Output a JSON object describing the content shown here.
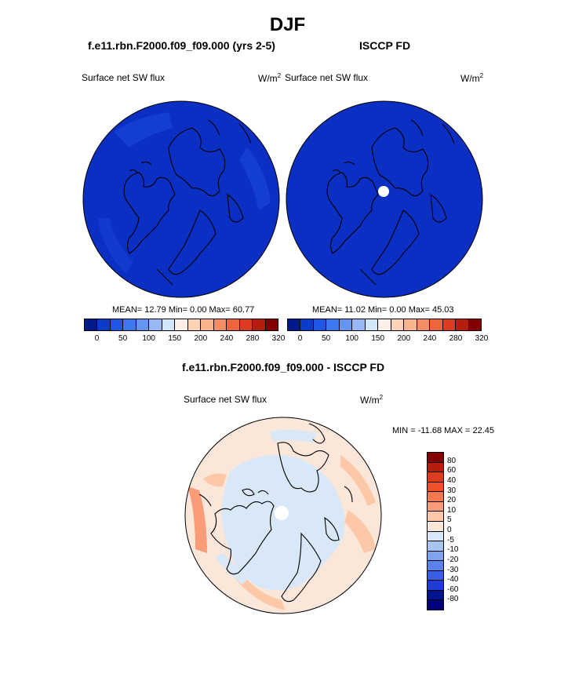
{
  "figure": {
    "title": "DJF",
    "panel_left": {
      "subtitle": "f.e11.rbn.F2000.f09_f09.000 (yrs 2-5)",
      "variable": "Surface net SW flux",
      "units": "W/m",
      "units_exp": "2",
      "stats": "MEAN=  12.79  Min=   0.00  Max=  60.77"
    },
    "panel_right": {
      "subtitle": "ISCCP FD",
      "variable": "Surface net SW flux",
      "units": "W/m",
      "units_exp": "2",
      "stats": "MEAN=  11.02  Min=   0.00  Max=  45.03"
    },
    "panel_diff": {
      "subtitle": "f.e11.rbn.F2000.f09_f09.000 - ISCCP FD",
      "variable": "Surface net SW flux",
      "units": "W/m",
      "units_exp": "2",
      "stats": "MIN = -11.68 MAX =  22.45"
    },
    "colorbar_abs": {
      "ticks": [
        "0",
        "50",
        "100",
        "150",
        "200",
        "240",
        "280",
        "320"
      ],
      "colors": [
        "#001a8c",
        "#0a3cc8",
        "#1e56e6",
        "#3c78f0",
        "#6496f0",
        "#96b9f5",
        "#d2e6fa",
        "#fbeee6",
        "#fcd2b4",
        "#fab48c",
        "#f68c64",
        "#f0643c",
        "#dc3c1e",
        "#b41e0a",
        "#820000"
      ]
    },
    "colorbar_diff": {
      "ticks": [
        "80",
        "60",
        "40",
        "30",
        "20",
        "10",
        "5",
        "0",
        "-5",
        "-10",
        "-20",
        "-30",
        "-40",
        "-60",
        "-80"
      ],
      "colors": [
        "#820000",
        "#b41e0a",
        "#dc3c1e",
        "#f0502a",
        "#f6784e",
        "#fa9c78",
        "#fcc8a8",
        "#fbe6da",
        "#d8e8f8",
        "#a6c4f0",
        "#7ea4ee",
        "#5a82ec",
        "#3a5ee6",
        "#1e3cd2",
        "#00148c"
      ]
    }
  }
}
